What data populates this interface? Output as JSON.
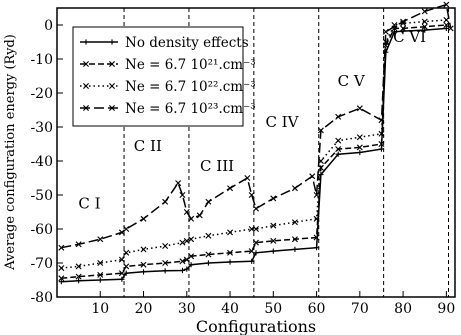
{
  "chart_data": {
    "type": "line",
    "xlabel": "Configurations",
    "ylabel": "Average configuration energy (Ryd)",
    "xlim": [
      0,
      92
    ],
    "ylim": [
      -80,
      5
    ],
    "xticks": [
      10,
      20,
      30,
      40,
      50,
      60,
      70,
      80,
      90
    ],
    "yticks": [
      -80,
      -70,
      -60,
      -50,
      -40,
      -30,
      -20,
      -10,
      0
    ],
    "grid": false,
    "legend_position": "top-left",
    "dividers_x": [
      15.5,
      30.5,
      45.5,
      60.5,
      75.5,
      90.5
    ],
    "region_labels": [
      {
        "text": "C I",
        "x": 7.5,
        "y": -54
      },
      {
        "text": "C II",
        "x": 21,
        "y": -37
      },
      {
        "text": "C III",
        "x": 37,
        "y": -43
      },
      {
        "text": "C IV",
        "x": 52,
        "y": -30
      },
      {
        "text": "C V",
        "x": 68,
        "y": -18
      },
      {
        "text": "C VI",
        "x": 81.5,
        "y": -5
      }
    ],
    "series": [
      {
        "name": "No density effects",
        "style": "solid",
        "marker": "plus",
        "points": [
          [
            1,
            -75.5
          ],
          [
            5,
            -75.2
          ],
          [
            10,
            -75
          ],
          [
            15,
            -74.8
          ],
          [
            16,
            -73
          ],
          [
            20,
            -72.6
          ],
          [
            25,
            -72.3
          ],
          [
            29,
            -72.2
          ],
          [
            30,
            -71.8
          ],
          [
            31,
            -70.5
          ],
          [
            35,
            -70
          ],
          [
            40,
            -69.7
          ],
          [
            45,
            -69.5
          ],
          [
            46,
            -67
          ],
          [
            50,
            -66.5
          ],
          [
            55,
            -66
          ],
          [
            60,
            -65.5
          ],
          [
            61,
            -44
          ],
          [
            65,
            -38
          ],
          [
            70,
            -37.5
          ],
          [
            75,
            -36.5
          ],
          [
            76,
            -8
          ],
          [
            78,
            -2
          ],
          [
            80,
            -1.8
          ],
          [
            85,
            -1.5
          ],
          [
            90,
            -1
          ]
        ]
      },
      {
        "name": "Ne = 6.7 10²¹.cm⁻³",
        "style": "dashed",
        "marker": "x",
        "points": [
          [
            1,
            -74.5
          ],
          [
            5,
            -74
          ],
          [
            10,
            -73.5
          ],
          [
            15,
            -73
          ],
          [
            16,
            -71
          ],
          [
            20,
            -70.5
          ],
          [
            25,
            -70
          ],
          [
            29,
            -69.5
          ],
          [
            30,
            -69
          ],
          [
            31,
            -68
          ],
          [
            35,
            -67.5
          ],
          [
            40,
            -67
          ],
          [
            45,
            -66.5
          ],
          [
            46,
            -64
          ],
          [
            50,
            -63.5
          ],
          [
            55,
            -63
          ],
          [
            60,
            -62.5
          ],
          [
            61,
            -42
          ],
          [
            65,
            -36.5
          ],
          [
            70,
            -36
          ],
          [
            75,
            -35
          ],
          [
            76,
            -6
          ],
          [
            78,
            -1
          ],
          [
            80,
            -1
          ],
          [
            85,
            -0.5
          ],
          [
            90,
            0
          ]
        ]
      },
      {
        "name": "Ne = 6.7 10²².cm⁻³",
        "style": "dotted",
        "marker": "x",
        "points": [
          [
            1,
            -71.5
          ],
          [
            5,
            -71
          ],
          [
            10,
            -70
          ],
          [
            15,
            -69
          ],
          [
            16,
            -67
          ],
          [
            20,
            -66
          ],
          [
            25,
            -65
          ],
          [
            29,
            -64
          ],
          [
            30,
            -63.5
          ],
          [
            31,
            -63
          ],
          [
            35,
            -62
          ],
          [
            40,
            -61
          ],
          [
            45,
            -60
          ],
          [
            46,
            -60
          ],
          [
            50,
            -59
          ],
          [
            55,
            -58
          ],
          [
            60,
            -57
          ],
          [
            61,
            -40
          ],
          [
            65,
            -34
          ],
          [
            70,
            -33
          ],
          [
            75,
            -32
          ],
          [
            76,
            -5
          ],
          [
            78,
            0
          ],
          [
            80,
            0.5
          ],
          [
            85,
            1
          ],
          [
            90,
            1.5
          ]
        ]
      },
      {
        "name": "Ne = 6.7 10²³.cm⁻³",
        "style": "longdash",
        "marker": "x",
        "points": [
          [
            1,
            -65.5
          ],
          [
            5,
            -64.5
          ],
          [
            10,
            -63
          ],
          [
            15,
            -61
          ],
          [
            16,
            -60
          ],
          [
            20,
            -57
          ],
          [
            25,
            -52
          ],
          [
            28,
            -46.5
          ],
          [
            29,
            -50
          ],
          [
            30,
            -55
          ],
          [
            31,
            -57
          ],
          [
            33,
            -56
          ],
          [
            35,
            -52
          ],
          [
            40,
            -48
          ],
          [
            44,
            -45
          ],
          [
            45,
            -50
          ],
          [
            46,
            -54
          ],
          [
            50,
            -51
          ],
          [
            55,
            -48
          ],
          [
            59,
            -44.5
          ],
          [
            60,
            -50
          ],
          [
            61,
            -31
          ],
          [
            65,
            -27
          ],
          [
            70,
            -24.5
          ],
          [
            75,
            -28
          ],
          [
            76,
            -2
          ],
          [
            80,
            1
          ],
          [
            85,
            4
          ],
          [
            90,
            6
          ],
          [
            91,
            -1
          ]
        ]
      }
    ]
  }
}
